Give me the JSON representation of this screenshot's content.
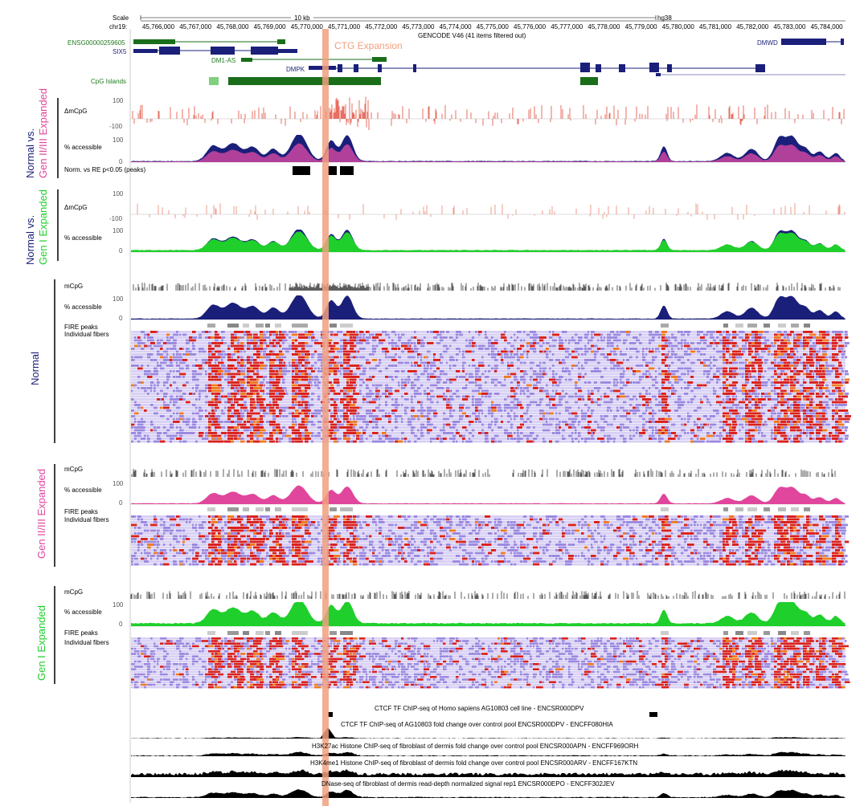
{
  "browser": {
    "scale_label": "Scale",
    "chrom_label": "chr19:",
    "scale_bar_label": "10 kb",
    "assembly": "hg38",
    "ruler_ticks": [
      "45,766,000",
      "45,767,000",
      "45,768,000",
      "45,769,000",
      "45,770,000",
      "45,771,000",
      "45,772,000",
      "45,773,000",
      "45,774,000",
      "45,775,000",
      "45,776,000",
      "45,777,000",
      "45,778,000",
      "45,779,000",
      "45,780,000",
      "45,781,000",
      "45,782,000",
      "45,783,000",
      "45,784,000"
    ],
    "gencode_label": "GENCODE V46 (41 items filtered out)",
    "cpg_label": "CpG Islands",
    "highlight_label": "CTG Expansion"
  },
  "genes": {
    "ensg": "ENSG00000259605",
    "six5": "SIX5",
    "dm1as": "DM1-AS",
    "dmpk": "DMPK",
    "dmwd": "DMWD"
  },
  "panels": {
    "normal_vs_gen23": {
      "label_a": "Normal vs.",
      "label_b": "Gen II/III Expanded",
      "dmcpg": "ΔmCpG",
      "accessible": "% accessible",
      "peaks": "Norm. vs RE p<0.05 (peaks)",
      "ytop": "100",
      "yzero": "0",
      "yneg": "-100"
    },
    "normal_vs_gen1": {
      "label_a": "Normal vs.",
      "label_b": "Gen I Expanded",
      "dmcpg": "ΔmCpG",
      "accessible": "% accessible",
      "ytop": "100",
      "yzero": "0",
      "yneg": "-100"
    },
    "normal": {
      "label": "Normal",
      "mcpg": "mCpG",
      "accessible": "% accessible",
      "fire": "FIRE peaks",
      "fibers": "Individual fibers",
      "ytop": "100",
      "yzero": "0"
    },
    "gen23": {
      "label": "Gen II/III Expanded",
      "mcpg": "mCpG",
      "accessible": "% accessible",
      "fire": "FIRE peaks",
      "fibers": "Individual fibers",
      "ytop": "100",
      "yzero": "0"
    },
    "gen1": {
      "label": "Gen I Expanded",
      "mcpg": "mCpG",
      "accessible": "% accessible",
      "fire": "FIRE peaks",
      "fibers": "Individual fibers",
      "ytop": "100",
      "yzero": "0"
    }
  },
  "encode": {
    "ctcf_peaks": "CTCF TF ChIP-seq of Homo sapiens AG10803 cell line - ENCSR000DPV",
    "ctcf_fc": "CTCF TF ChIP-seq of AG10803 fold change over control pool ENCSR000DPV - ENCFF080HIA",
    "h3k27ac": "H3K27ac Histone ChIP-seq of fibroblast of dermis fold change over control pool ENCSR000APN - ENCFF969ORH",
    "h3k4me1": "H3K4me1 Histone ChIP-seq of fibroblast of dermis fold change over control pool ENCSR000ARV - ENCFF167KTN",
    "dnase": "DNase-seq of fibroblast of dermis read-depth normalized signal rep1 ENCSR000EPO - ENCFF302JEV"
  },
  "colors": {
    "normal": "#1a1f7a",
    "gen23": "#e0469c",
    "gen1": "#1fcf2b",
    "highlight": "#f0a080",
    "gene": "#1a1f7a",
    "cpg": "#1a6e1a"
  }
}
